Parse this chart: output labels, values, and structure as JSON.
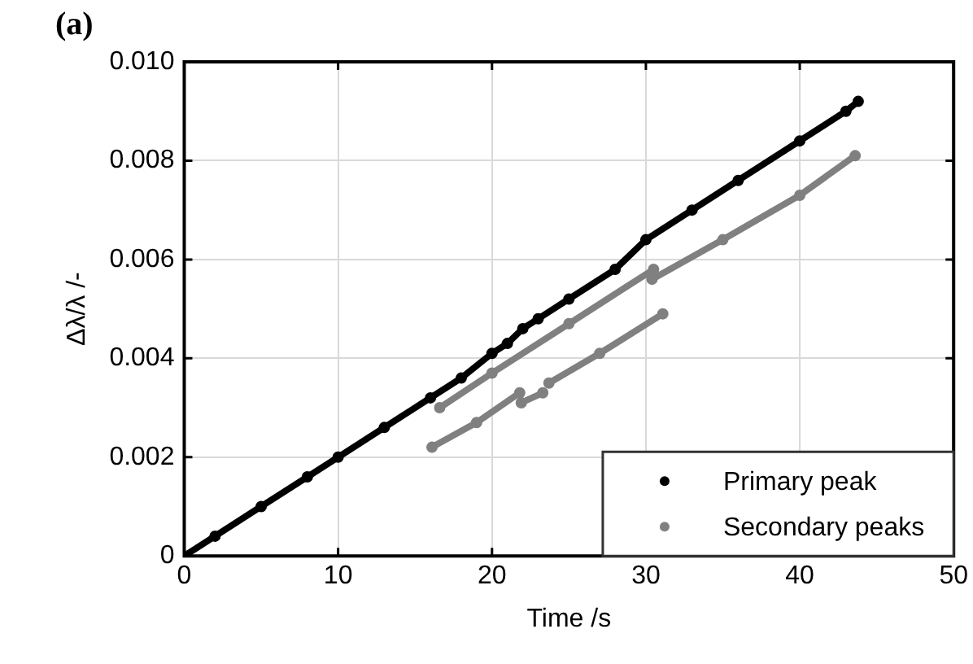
{
  "chart_data": {
    "type": "line",
    "title": "(a)",
    "xlabel": "Time /s",
    "ylabel": "Δλ/λ /-",
    "xlim": [
      0,
      50
    ],
    "xticks": [
      0,
      10,
      20,
      30,
      40,
      50
    ],
    "ylim": [
      0,
      0.01
    ],
    "yticks": [
      0,
      0.002,
      0.004,
      0.006,
      0.008,
      {
        "value": 0.01,
        "label": "0.010"
      }
    ],
    "grid": true,
    "legend": "bottom right",
    "marker": "circle",
    "line_style": "solid",
    "series": [
      {
        "name": "Primary peak",
        "color": "#000000",
        "x": [
          0,
          2,
          5,
          8,
          10,
          13,
          16,
          18,
          20,
          21,
          22,
          23,
          25,
          28,
          30,
          33,
          36,
          40,
          43,
          43.8
        ],
        "values": [
          0,
          0.0004,
          0.001,
          0.0016,
          0.002,
          0.0026,
          0.0032,
          0.0036,
          0.0041,
          0.0043,
          0.0046,
          0.0048,
          0.0052,
          0.0058,
          0.0064,
          0.007,
          0.0076,
          0.0084,
          0.009,
          0.0092
        ]
      },
      {
        "name": "Secondary peaks",
        "color": "#808080",
        "x": [
          16.6,
          20,
          25,
          30.5
        ],
        "values": [
          0.003,
          0.0037,
          0.0047,
          0.0058
        ]
      },
      {
        "color": "#808080",
        "x": [
          16.1,
          19,
          21.8
        ],
        "values": [
          0.0022,
          0.0027,
          0.0033
        ]
      },
      {
        "color": "#808080",
        "x": [
          21.9,
          23.3
        ],
        "values": [
          0.0031,
          0.0033
        ]
      },
      {
        "color": "#808080",
        "x": [
          23.7,
          27,
          31.1
        ],
        "values": [
          0.0035,
          0.0041,
          0.0049
        ]
      },
      {
        "color": "#808080",
        "x": [
          30.4,
          35,
          40,
          43.6
        ],
        "values": [
          0.0056,
          0.0064,
          0.0073,
          0.0081
        ]
      }
    ]
  }
}
